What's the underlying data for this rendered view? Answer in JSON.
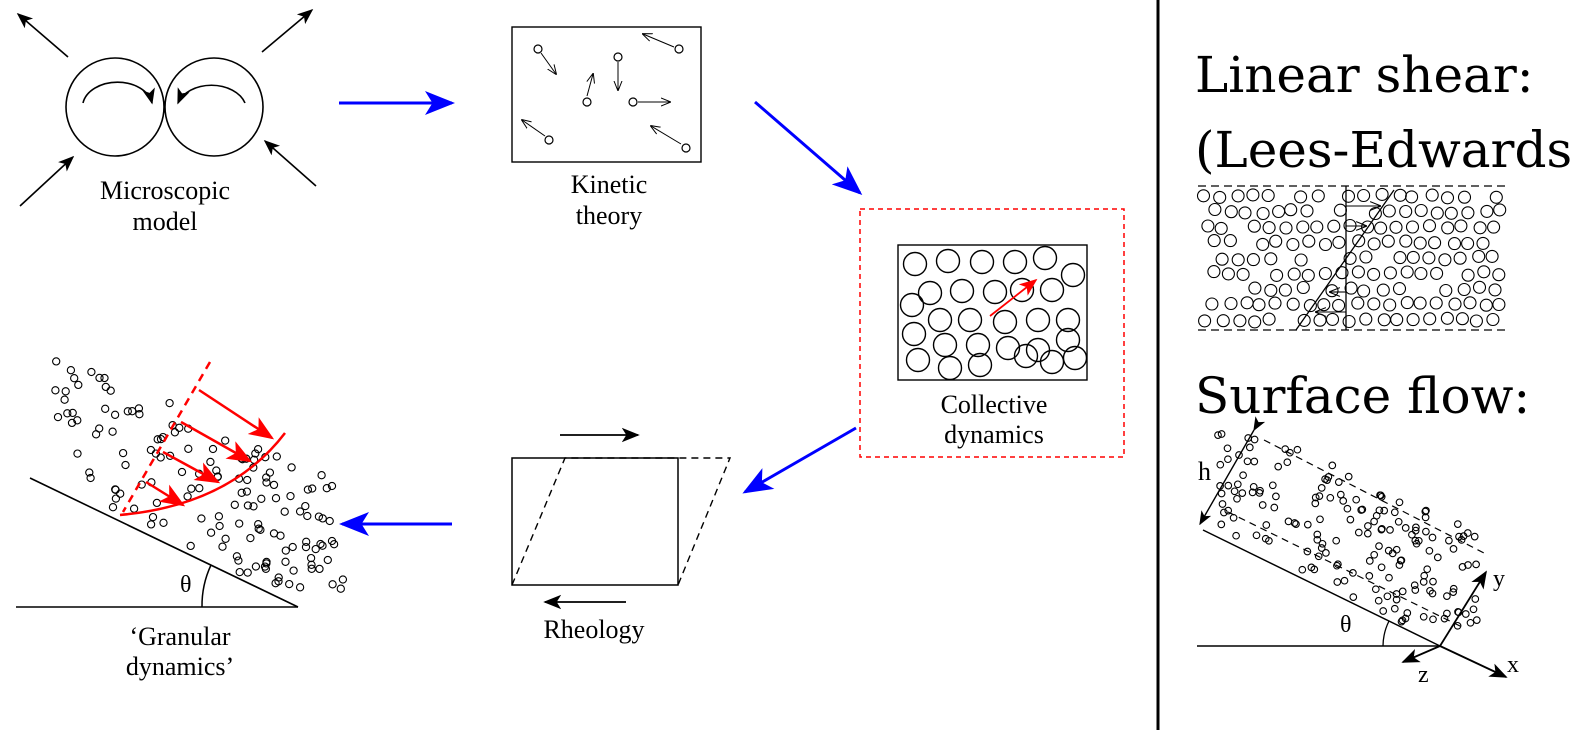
{
  "labels": {
    "micro_line1": "Microscopic",
    "micro_line2": "model",
    "kinetic_line1": "Kinetic",
    "kinetic_line2": "theory",
    "collective_line1": "Collective",
    "collective_line2": "dynamics",
    "rheology": "Rheology",
    "granular_line1": "‘Granular",
    "granular_line2": "dynamics’",
    "theta": "θ"
  },
  "side_panel": {
    "linear_title_line1": "Linear shear:",
    "linear_title_line2": "(Lees-Edwards)",
    "surface_title": "Surface flow:",
    "h_label": "h",
    "theta_label": "θ",
    "x_label": "x",
    "y_label": "y",
    "z_label": "z"
  },
  "colors": {
    "flow_arrow": "#0000ff",
    "highlight": "#ff0000",
    "ink": "#000000"
  }
}
